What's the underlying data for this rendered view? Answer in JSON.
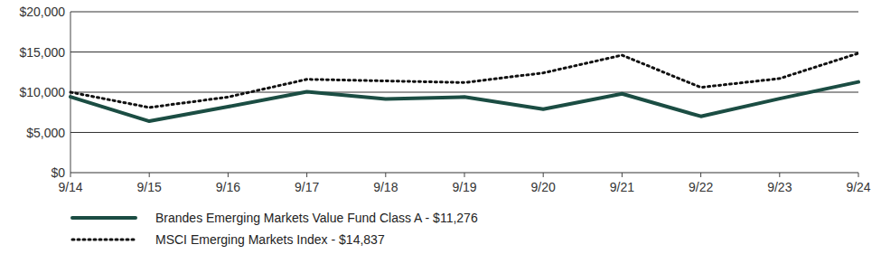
{
  "chart_data": {
    "type": "line",
    "categories": [
      "9/14",
      "9/15",
      "9/16",
      "9/17",
      "9/18",
      "9/19",
      "9/20",
      "9/21",
      "9/22",
      "9/23",
      "9/24"
    ],
    "series": [
      {
        "name": "Brandes Emerging Markets Value Fund Class A - $11,276",
        "color": "#1b4d43",
        "line_style": "solid",
        "values": [
          9425,
          6400,
          8200,
          10050,
          9150,
          9400,
          7900,
          9800,
          7000,
          9200,
          11276
        ]
      },
      {
        "name": "MSCI Emerging Markets Index - $14,837",
        "color": "#111111",
        "line_style": "dotted",
        "values": [
          10000,
          8100,
          9400,
          11600,
          11400,
          11200,
          12400,
          14600,
          10600,
          11700,
          14837
        ]
      }
    ],
    "ylim": [
      0,
      20000
    ],
    "yticks": [
      {
        "value": 0,
        "label": "$0"
      },
      {
        "value": 5000,
        "label": "$5,000"
      },
      {
        "value": 10000,
        "label": "$10,000"
      },
      {
        "value": 15000,
        "label": "$15,000"
      },
      {
        "value": 20000,
        "label": "$20,000"
      }
    ],
    "grid": true,
    "legend": "bottom"
  }
}
